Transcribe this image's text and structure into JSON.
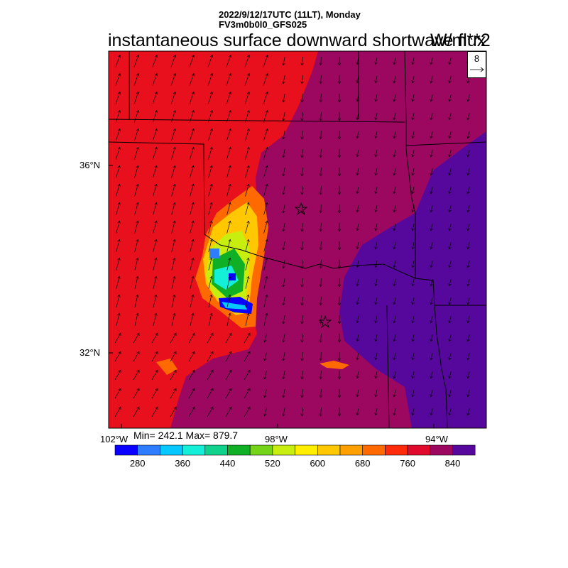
{
  "header": {
    "line1": "2022/9/12/17UTC (11LT), Monday",
    "line2": "FV3m0b0l0_GFS025"
  },
  "title": {
    "main": "instantaneous surface downward shortwave flux",
    "units": "W/m**2"
  },
  "reference_vector": {
    "value": "8"
  },
  "axes": {
    "lat_labels": [
      "36°N",
      "32°N"
    ],
    "lon_labels": [
      "102°W",
      "98°W",
      "94°W"
    ]
  },
  "stats": {
    "text": "Min= 242.1 Max= 879.7"
  },
  "colorbar": {
    "colors": [
      "#0a00ff",
      "#2f7dff",
      "#06c8ff",
      "#14f0d8",
      "#10d28c",
      "#10b026",
      "#76d418",
      "#c8ee10",
      "#ffee00",
      "#ffc800",
      "#ffa000",
      "#ff6a00",
      "#ff2a0a",
      "#e00a2c",
      "#9c0860",
      "#56089c"
    ],
    "labels": [
      "280",
      "360",
      "440",
      "520",
      "600",
      "680",
      "760",
      "840"
    ]
  },
  "map": {
    "legend_colors": {
      "high": "#e8101c",
      "very_high": "#9c0860",
      "max": "#56089c"
    },
    "markers": [
      "star",
      "star"
    ]
  }
}
